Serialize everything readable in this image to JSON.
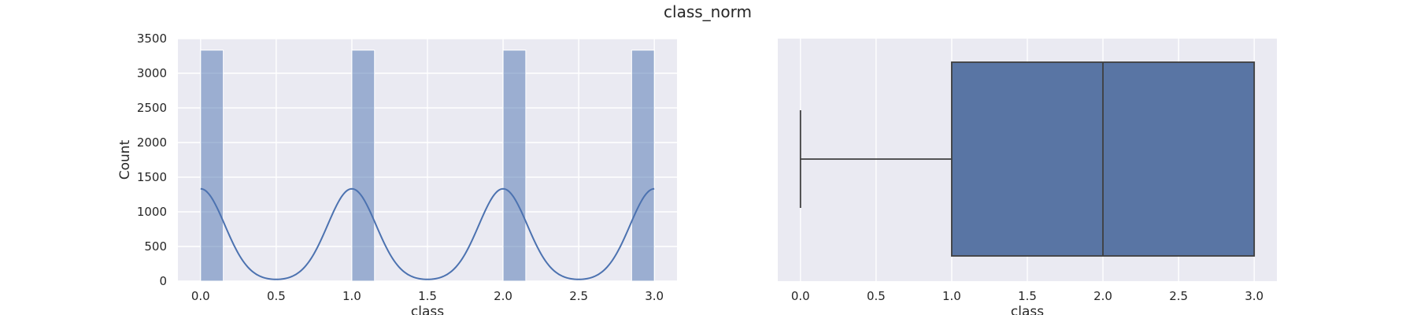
{
  "figure": {
    "title": "class_norm",
    "background": "#ffffff",
    "axes_facecolor": "#eaeaf2",
    "grid_color": "#ffffff"
  },
  "chart_data": [
    {
      "type": "bar",
      "subtype": "histogram with kde",
      "xlabel": "class",
      "ylabel": "Count",
      "xlim": [
        -0.15,
        3.15
      ],
      "ylim": [
        0,
        3500
      ],
      "xticks": [
        0.0,
        0.5,
        1.0,
        1.5,
        2.0,
        2.5,
        3.0
      ],
      "xtick_labels": [
        "0.0",
        "0.5",
        "1.0",
        "1.5",
        "2.0",
        "2.5",
        "3.0"
      ],
      "yticks": [
        0,
        500,
        1000,
        1500,
        2000,
        2500,
        3000,
        3500
      ],
      "ytick_labels": [
        "0",
        "500",
        "1000",
        "1500",
        "2000",
        "2500",
        "3000",
        "3500"
      ],
      "grid": true,
      "bins": [
        {
          "start": 0.0,
          "end": 0.15,
          "count": 3333
        },
        {
          "start": 1.0,
          "end": 1.15,
          "count": 3333
        },
        {
          "start": 2.0,
          "end": 2.15,
          "count": 3333
        },
        {
          "start": 2.85,
          "end": 3.0,
          "count": 3333
        }
      ],
      "bar_color": "#4c72b0",
      "bar_alpha": 0.5,
      "kde": {
        "color": "#4c72b0",
        "peaks": [
          0,
          1,
          2,
          3
        ],
        "peak_value": 1333,
        "trough_value": 25
      }
    },
    {
      "type": "boxplot",
      "xlabel": "class",
      "xlim": [
        -0.15,
        3.15
      ],
      "xticks": [
        0.0,
        0.5,
        1.0,
        1.5,
        2.0,
        2.5,
        3.0
      ],
      "xtick_labels": [
        "0.0",
        "0.5",
        "1.0",
        "1.5",
        "2.0",
        "2.5",
        "3.0"
      ],
      "grid": true,
      "stats": {
        "whisker_low": 0.0,
        "q1": 1.0,
        "median": 2.0,
        "q3": 3.0,
        "whisker_high": 3.0
      },
      "box_color": "#5975a4",
      "line_color": "#3f3f3f"
    }
  ]
}
